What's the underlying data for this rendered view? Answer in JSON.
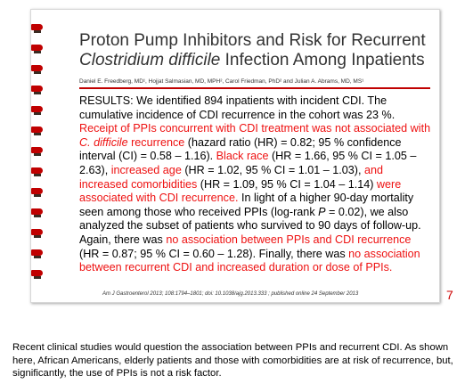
{
  "slide": {
    "title_line1": "Proton Pump Inhibitors and Risk for Recurrent",
    "title_line2_italic": "Clostridium difficile",
    "title_line2_rest": " Infection Among Inpatients",
    "authors": "Daniel E. Freedberg, MD¹, Hojjat Salmasian, MD, MPH², Carol Friedman, PhD² and Julian A. Abrams, MD, MS¹",
    "results_segments": [
      {
        "text": "RESULTS: We identified 894 inpatients with incident CDI. The cumulative incidence of CDI recurrence in the cohort was 23 %. ",
        "red": false
      },
      {
        "text": "Receipt of PPIs concurrent with CDI treatment was not associated with ",
        "red": true
      },
      {
        "text": "C. difficile",
        "red": true,
        "italic": true
      },
      {
        "text": " recurrence",
        "red": true
      },
      {
        "text": " (hazard ratio (HR) = 0.82; 95 % confidence interval (CI) = 0.58 – 1.16). ",
        "red": false
      },
      {
        "text": "Black race",
        "red": true
      },
      {
        "text": " (HR = 1.66, 95 % CI = 1.05 – 2.63), ",
        "red": false
      },
      {
        "text": "increased age",
        "red": true
      },
      {
        "text": " (HR = 1.02, 95 % CI = 1.01 – 1.03), ",
        "red": false
      },
      {
        "text": "and increased comorbidities",
        "red": true
      },
      {
        "text": " (HR = 1.09, 95 % CI = 1.04 – 1.14) ",
        "red": false
      },
      {
        "text": "were associated with CDI recurrence.",
        "red": true
      },
      {
        "text": " In light of a higher 90-day mortality seen among those who received PPIs (log-rank ",
        "red": false
      },
      {
        "text": "P",
        "red": false,
        "italic": true
      },
      {
        "text": " = 0.02), we also analyzed the subset of patients who survived to 90 days of follow-up. Again, there was ",
        "red": false
      },
      {
        "text": "no association between PPIs and CDI recurrence",
        "red": true
      },
      {
        "text": " (HR = 0.87; 95 % CI = 0.60 – 1.28). Finally, there was ",
        "red": false
      },
      {
        "text": "no association between recurrent CDI and increased duration or dose of PPIs.",
        "red": true
      }
    ],
    "citation": "Am J Gastroenterol 2013; 108:1794–1801; doi: 10.1038/ajg.2013.333 ; published online 24 September 2013",
    "page_number": "7",
    "accent_color": "#c00000",
    "highlight_color": "#ee1111"
  },
  "caption": "Recent clinical studies would question the association between PPIs and recurrent CDI. As shown here, African Americans, elderly patients and those with comorbidities are at risk of recurrence, but, significantly, the use of PPIs is not a risk factor."
}
